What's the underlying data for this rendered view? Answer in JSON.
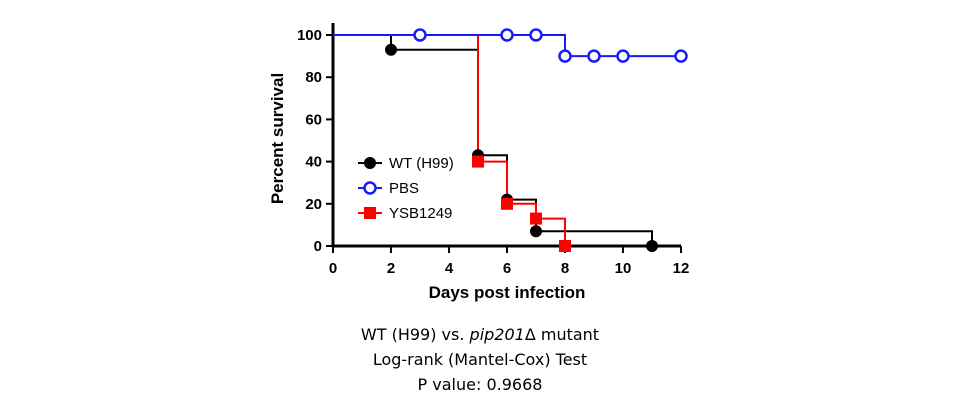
{
  "chart_data": {
    "type": "line",
    "subtype": "kaplan-meier-step",
    "xlabel": "Days post infection",
    "ylabel": "Percent survival",
    "xlim": [
      0,
      12
    ],
    "ylim": [
      0,
      100
    ],
    "xticks": [
      "0",
      "2",
      "4",
      "6",
      "8",
      "10",
      "12"
    ],
    "yticks": [
      "0",
      "20",
      "40",
      "60",
      "80",
      "100"
    ],
    "grid": false,
    "legend": "center-left",
    "series": [
      {
        "name": "WT (H99)",
        "color": "#000000",
        "marker": "filled-circle",
        "step_x": [
          0,
          2,
          5,
          6,
          7,
          11
        ],
        "step_y": [
          100,
          93,
          43,
          22,
          7,
          0
        ],
        "end_x": 11,
        "markers": [
          [
            2,
            93
          ],
          [
            5,
            43
          ],
          [
            6,
            22
          ],
          [
            7,
            7
          ],
          [
            11,
            0
          ]
        ]
      },
      {
        "name": "PBS",
        "color": "#1a1aff",
        "marker": "open-circle",
        "step_x": [
          0,
          8
        ],
        "step_y": [
          100,
          90
        ],
        "end_x": 12,
        "markers": [
          [
            3,
            100
          ],
          [
            6,
            100
          ],
          [
            7,
            100
          ],
          [
            8,
            90
          ],
          [
            9,
            90
          ],
          [
            10,
            90
          ],
          [
            12,
            90
          ]
        ]
      },
      {
        "name": "YSB1249",
        "color": "#ff0000",
        "marker": "filled-square",
        "step_x": [
          0,
          5,
          6,
          7,
          8
        ],
        "step_y": [
          100,
          40,
          20,
          13,
          0
        ],
        "end_x": 8,
        "markers": [
          [
            5,
            40
          ],
          [
            6,
            20
          ],
          [
            7,
            13
          ],
          [
            8,
            0
          ]
        ]
      }
    ]
  },
  "caption": {
    "line1_prefix": "WT (H99) vs. ",
    "line1_italic": "pip201",
    "line1_suffix": "Δ mutant",
    "line2": "Log-rank (Mantel-Cox) Test",
    "line3": "P value: 0.9668"
  }
}
